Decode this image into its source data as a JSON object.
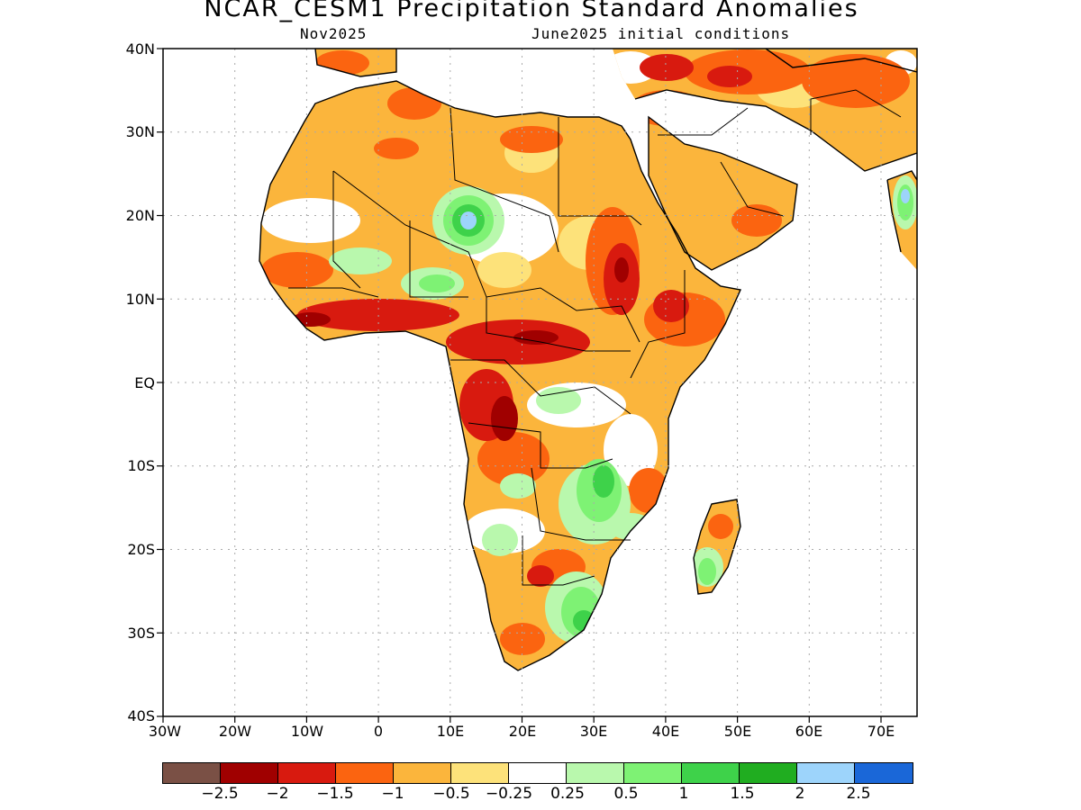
{
  "title": "NCAR_CESM1 Precipitation Standard Anomalies",
  "subtitle_left": "Nov2025",
  "subtitle_right": "June2025 initial conditions",
  "y_ticks": [
    "40N",
    "30N",
    "20N",
    "10N",
    "EQ",
    "10S",
    "20S",
    "30S",
    "40S"
  ],
  "x_ticks": [
    "30W",
    "20W",
    "10W",
    "0",
    "10E",
    "20E",
    "30E",
    "40E",
    "50E",
    "60E",
    "70E"
  ],
  "legend": {
    "colors": [
      "#7a5045",
      "#a00000",
      "#d81a0f",
      "#fb6410",
      "#fbb53c",
      "#fde27a",
      "#ffffff",
      "#b9f8ad",
      "#7ef274",
      "#3ed24a",
      "#20ad20",
      "#9dd4fb",
      "#1a67d8"
    ],
    "labels": [
      "−2.5",
      "−2",
      "−1.5",
      "−1",
      "−0.5",
      "−0.25",
      "0.25",
      "0.5",
      "1",
      "1.5",
      "2",
      "2.5"
    ]
  },
  "colors": {
    "light_orange": "#fbb53c",
    "orange": "#fb6410",
    "red": "#d81a0f",
    "dark_red": "#a00000",
    "yellow": "#fde27a",
    "light_green": "#b9f8ad",
    "green": "#7ef274",
    "mid_green": "#3ed24a",
    "light_blue": "#9dd4fb"
  }
}
